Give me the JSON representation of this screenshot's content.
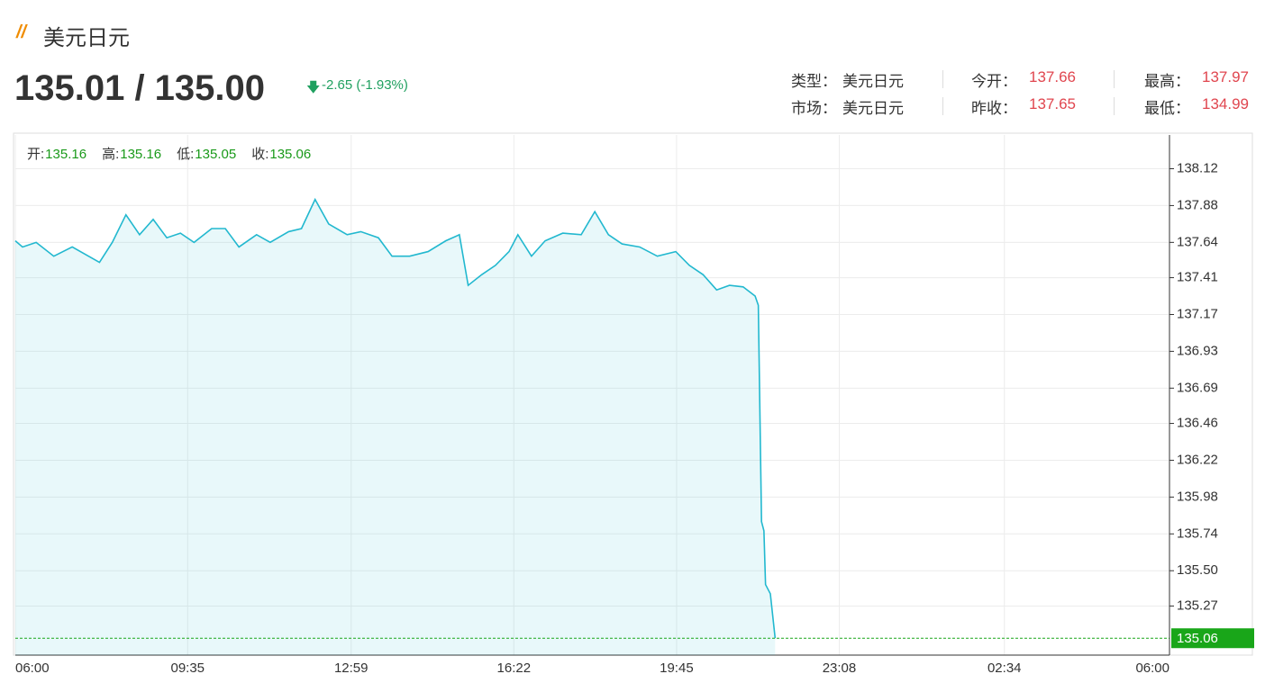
{
  "header": {
    "title": "美元日元",
    "price": "135.01 / 135.00",
    "change": "-2.65 (-1.93%)",
    "info": [
      {
        "label": "类型：",
        "value": "美元日元"
      },
      {
        "label": "市场：",
        "value": "美元日元"
      },
      {
        "label": "今开：",
        "value": "137.66"
      },
      {
        "label": "昨收：",
        "value": "137.65"
      },
      {
        "label": "最高：",
        "value": "137.97"
      },
      {
        "label": "最低：",
        "value": "134.99"
      }
    ]
  },
  "chart_data": {
    "type": "line",
    "ohlc": [
      {
        "label": "开:",
        "value": "135.16"
      },
      {
        "label": "高:",
        "value": "135.16"
      },
      {
        "label": "低:",
        "value": "135.05"
      },
      {
        "label": "收:",
        "value": "135.06"
      }
    ],
    "x": [
      0,
      9,
      26,
      48,
      71,
      105,
      121,
      138,
      155,
      172,
      189,
      206,
      223,
      245,
      262,
      279,
      301,
      318,
      341,
      357,
      374,
      391,
      414,
      431,
      453,
      470,
      492,
      515,
      537,
      554,
      565,
      582,
      599,
      616,
      627,
      644,
      661,
      683,
      706,
      723,
      740,
      757,
      779,
      801,
      824,
      841,
      858,
      875,
      891,
      908,
      923,
      927,
      931,
      934,
      936,
      942,
      948
    ],
    "values": [
      137.65,
      137.61,
      137.64,
      137.55,
      137.61,
      137.51,
      137.64,
      137.82,
      137.69,
      137.79,
      137.67,
      137.7,
      137.64,
      137.73,
      137.73,
      137.61,
      137.69,
      137.64,
      137.71,
      137.73,
      137.92,
      137.76,
      137.69,
      137.71,
      137.67,
      137.55,
      137.55,
      137.58,
      137.65,
      137.69,
      137.36,
      137.43,
      137.49,
      137.58,
      137.69,
      137.55,
      137.65,
      137.7,
      137.69,
      137.84,
      137.69,
      137.63,
      137.61,
      137.55,
      137.58,
      137.49,
      137.43,
      137.33,
      137.36,
      137.35,
      137.29,
      137.23,
      135.82,
      135.76,
      135.41,
      135.35,
      135.06
    ],
    "color": "#22b8cf",
    "last_value": 135.06,
    "last_color": "#19a619",
    "xlim": [
      0,
      1440
    ],
    "xticks": [
      {
        "value": 0,
        "label": "06:00"
      },
      {
        "value": 215,
        "label": "09:35"
      },
      {
        "value": 419,
        "label": "12:59"
      },
      {
        "value": 622,
        "label": "16:22"
      },
      {
        "value": 825,
        "label": "19:45"
      },
      {
        "value": 1028,
        "label": "23:08"
      },
      {
        "value": 1234,
        "label": "02:34"
      },
      {
        "value": 1440,
        "label": "06:00"
      }
    ],
    "ylim": [
      134.95,
      138.34
    ],
    "yticks": [
      138.12,
      137.88,
      137.64,
      137.41,
      137.17,
      136.93,
      136.69,
      136.46,
      136.22,
      135.98,
      135.74,
      {
        "value": 135.5,
        "label": "135.50"
      },
      135.27
    ],
    "grid": true
  }
}
